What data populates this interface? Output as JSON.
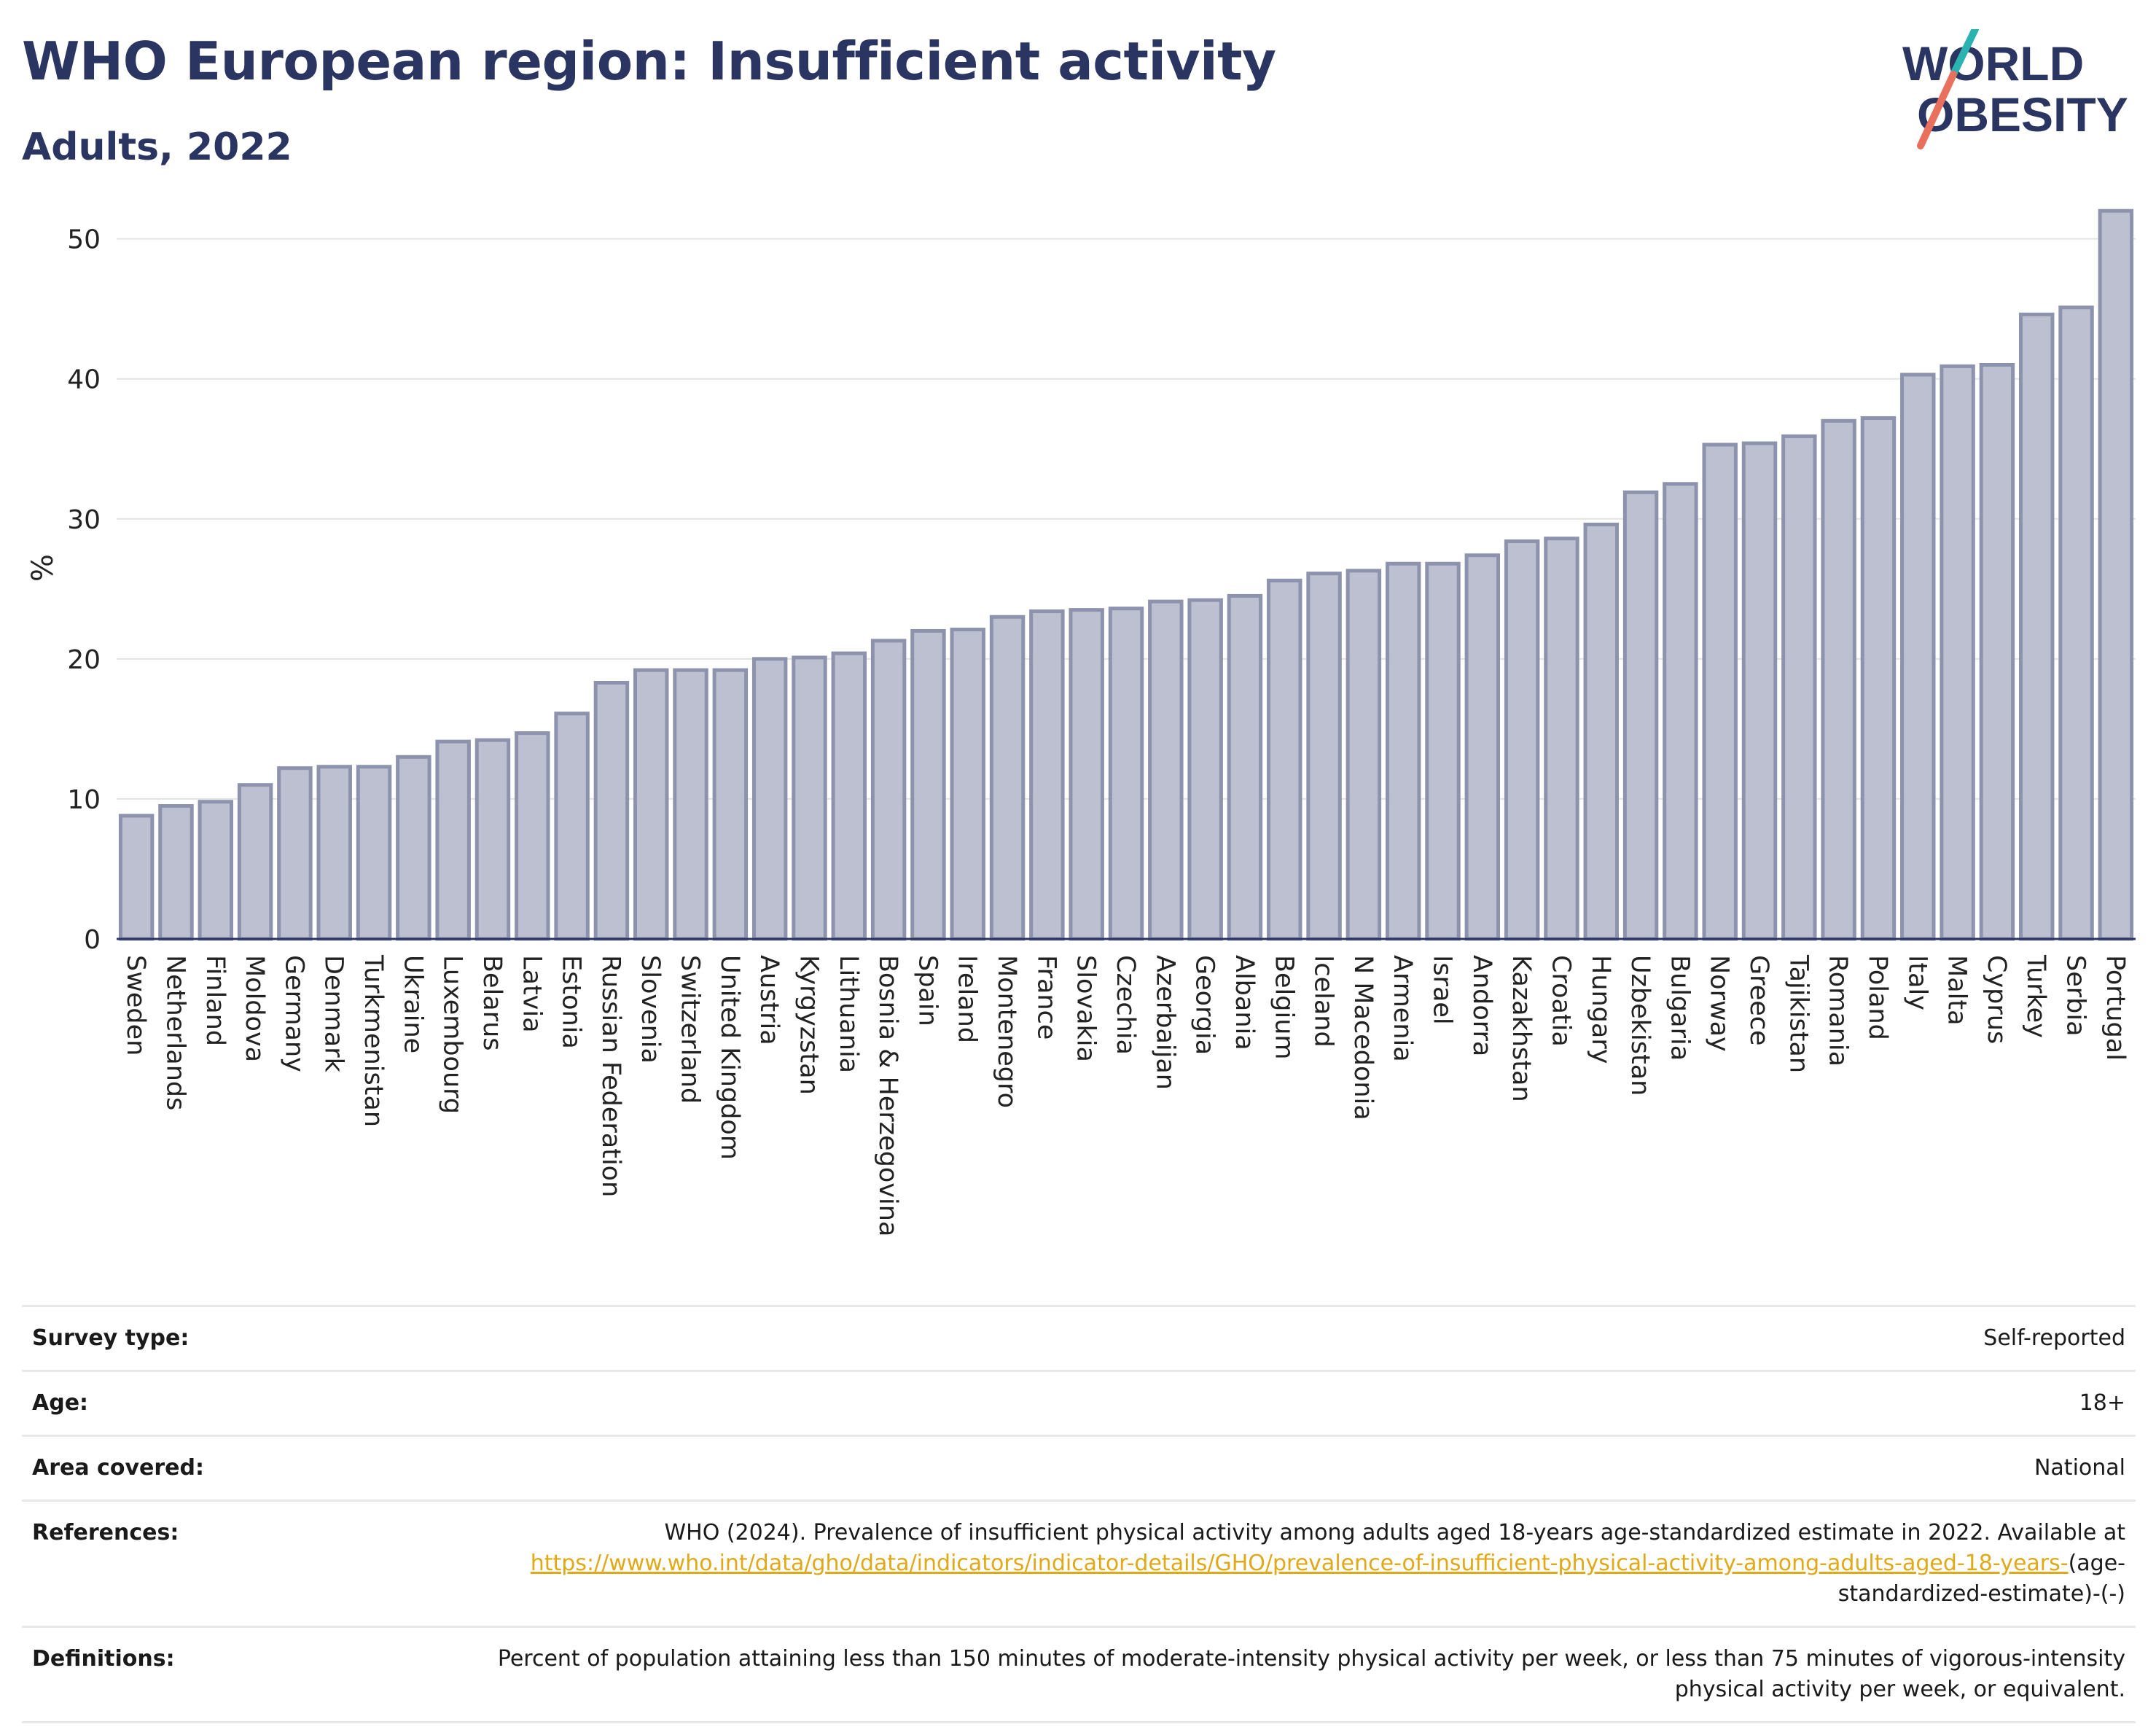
{
  "header": {
    "title": "WHO European region: Insufficient activity",
    "subtitle": "Adults, 2022",
    "logo_line1": "WORLD",
    "logo_line2": "OBESITY"
  },
  "colors": {
    "title": "#2b3562",
    "bar_fill": "#b9bdcd",
    "bar_stroke": "#8e93ad",
    "link": "#e2a917",
    "logo_teal": "#2bb3b1",
    "logo_coral": "#e8705d"
  },
  "chart_data": {
    "type": "bar",
    "ylabel": "%",
    "ylim": [
      0,
      53
    ],
    "yticks": [
      0,
      10,
      20,
      30,
      40,
      50
    ],
    "grid": true,
    "categories": [
      "Sweden",
      "Netherlands",
      "Finland",
      "Moldova",
      "Germany",
      "Denmark",
      "Turkmenistan",
      "Ukraine",
      "Luxembourg",
      "Belarus",
      "Latvia",
      "Estonia",
      "Russian Federation",
      "Slovenia",
      "Switzerland",
      "United Kingdom",
      "Austria",
      "Kyrgyzstan",
      "Lithuania",
      "Bosnia & Herzegovina",
      "Spain",
      "Ireland",
      "Montenegro",
      "France",
      "Slovakia",
      "Czechia",
      "Azerbaijan",
      "Georgia",
      "Albania",
      "Belgium",
      "Iceland",
      "N Macedonia",
      "Armenia",
      "Israel",
      "Andorra",
      "Kazakhstan",
      "Croatia",
      "Hungary",
      "Uzbekistan",
      "Bulgaria",
      "Norway",
      "Greece",
      "Tajikistan",
      "Romania",
      "Poland",
      "Italy",
      "Malta",
      "Cyprus",
      "Turkey",
      "Serbia",
      "Portugal"
    ],
    "values": [
      8.8,
      9.5,
      9.8,
      11.0,
      12.2,
      12.3,
      12.3,
      13.0,
      14.1,
      14.2,
      14.7,
      16.1,
      18.3,
      19.2,
      19.2,
      19.2,
      20.0,
      20.1,
      20.4,
      21.3,
      22.0,
      22.1,
      23.0,
      23.4,
      23.5,
      23.6,
      24.1,
      24.2,
      24.5,
      25.6,
      26.1,
      26.3,
      26.8,
      26.8,
      27.4,
      28.4,
      28.6,
      29.6,
      31.9,
      32.5,
      35.3,
      35.4,
      35.9,
      37.0,
      37.2,
      40.3,
      40.9,
      41.0,
      44.6,
      45.1,
      52.0
    ]
  },
  "meta": {
    "survey_type_label": "Survey type:",
    "survey_type_value": "Self-reported",
    "age_label": "Age:",
    "age_value": "18+",
    "area_label": "Area covered:",
    "area_value": "National",
    "references_label": "References:",
    "references_text": "WHO (2024). Prevalence of insufficient physical activity among adults aged 18-years age-standardized estimate in 2022. Available at",
    "references_link": "https://www.who.int/data/gho/data/indicators/indicator-details/GHO/prevalence-of-insufficient-physical-activity-among-adults-aged-18-years-",
    "references_suffix": "(age-standardized-estimate)-(-)",
    "definitions_label": "Definitions:",
    "definitions_text": "Percent of population attaining less than 150 minutes of moderate-intensity physical activity per week, or less than 75 minutes of vigorous-intensity physical activity per week, or equivalent."
  }
}
